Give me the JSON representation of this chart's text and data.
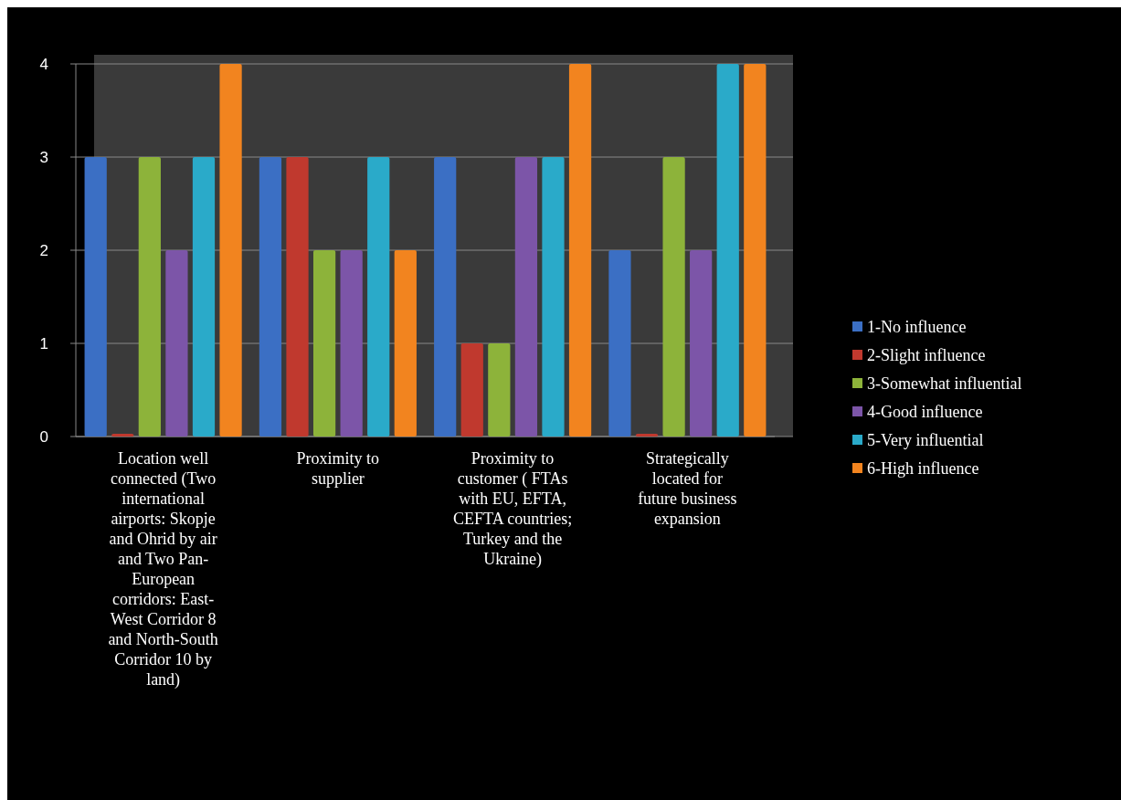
{
  "chart_data": {
    "type": "bar",
    "categories": [
      "Location well connected (Two international airports: Skopje and Ohrid by air and Two Pan-European corridors: East-West Corridor 8 and North-South Corridor 10 by land)",
      "Proximity to supplier",
      "Proximity to customer ( FTAs with EU, EFTA, CEFTA countries; Turkey and the Ukraine)",
      "Strategically located for future business expansion"
    ],
    "series": [
      {
        "name": "1-No influence",
        "color": "#3b6fc4",
        "values": [
          3,
          3,
          3,
          2
        ]
      },
      {
        "name": "2-Slight influence",
        "color": "#c0392e",
        "values": [
          0,
          3,
          1,
          0
        ]
      },
      {
        "name": "3-Somewhat influential",
        "color": "#8db33a",
        "values": [
          3,
          2,
          1,
          3
        ]
      },
      {
        "name": "4-Good influence",
        "color": "#7c55a8",
        "values": [
          2,
          2,
          3,
          2
        ]
      },
      {
        "name": "5-Very influential",
        "color": "#2aaac9",
        "values": [
          3,
          3,
          3,
          4
        ]
      },
      {
        "name": "6-High influence",
        "color": "#f2841f",
        "values": [
          4,
          2,
          4,
          4
        ]
      }
    ],
    "ylim": [
      0,
      4
    ],
    "yticks": [
      0,
      1,
      2,
      3,
      4
    ],
    "grid": "y",
    "legend": "right"
  }
}
